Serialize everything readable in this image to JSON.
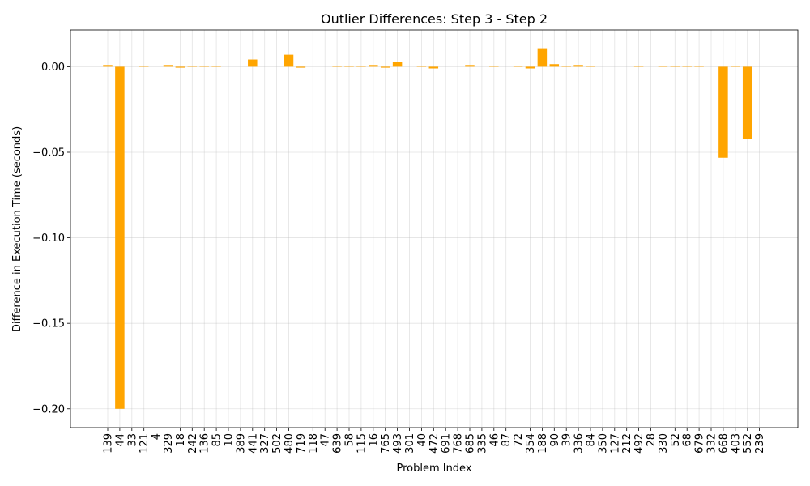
{
  "chart_data": {
    "type": "bar",
    "title": "Outlier Differences: Step 3 - Step 2",
    "xlabel": "Problem Index",
    "ylabel": "Difference in Execution Time (seconds)",
    "ylim": [
      -0.211,
      0.0215
    ],
    "yticks": [
      0.0,
      -0.05,
      -0.1,
      -0.15,
      -0.2
    ],
    "ytick_labels": [
      "0.00",
      "−0.05",
      "−0.10",
      "−0.15",
      "−0.20"
    ],
    "grid": true,
    "bar_color": "#ffa500",
    "categories": [
      "139",
      "44",
      "33",
      "121",
      "4",
      "329",
      "18",
      "242",
      "136",
      "85",
      "10",
      "389",
      "441",
      "327",
      "502",
      "480",
      "719",
      "118",
      "47",
      "639",
      "58",
      "115",
      "16",
      "765",
      "493",
      "301",
      "40",
      "472",
      "691",
      "768",
      "685",
      "335",
      "46",
      "87",
      "72",
      "354",
      "188",
      "90",
      "39",
      "336",
      "84",
      "350",
      "127",
      "212",
      "492",
      "28",
      "330",
      "52",
      "68",
      "679",
      "332",
      "668",
      "403",
      "552",
      "239"
    ],
    "values": [
      0.001,
      -0.2,
      0.0,
      0.0003,
      0.0,
      0.001,
      -0.0005,
      0.0003,
      0.0003,
      0.0003,
      0.0,
      0.0,
      0.0042,
      0.0,
      0.0,
      0.007,
      -0.0005,
      0.0,
      0.0,
      0.0003,
      0.0003,
      0.0003,
      0.001,
      -0.0003,
      0.003,
      0.0,
      0.0003,
      -0.001,
      0.0,
      0.0,
      0.001,
      0.0,
      0.0003,
      0.0,
      0.0003,
      -0.001,
      0.0108,
      0.0015,
      0.0003,
      0.001,
      0.0003,
      0.0,
      0.0,
      0.0,
      0.0003,
      0.0,
      0.0003,
      0.0003,
      0.0003,
      0.0003,
      0.0,
      -0.0532,
      0.0003,
      -0.0422,
      0.0
    ]
  }
}
